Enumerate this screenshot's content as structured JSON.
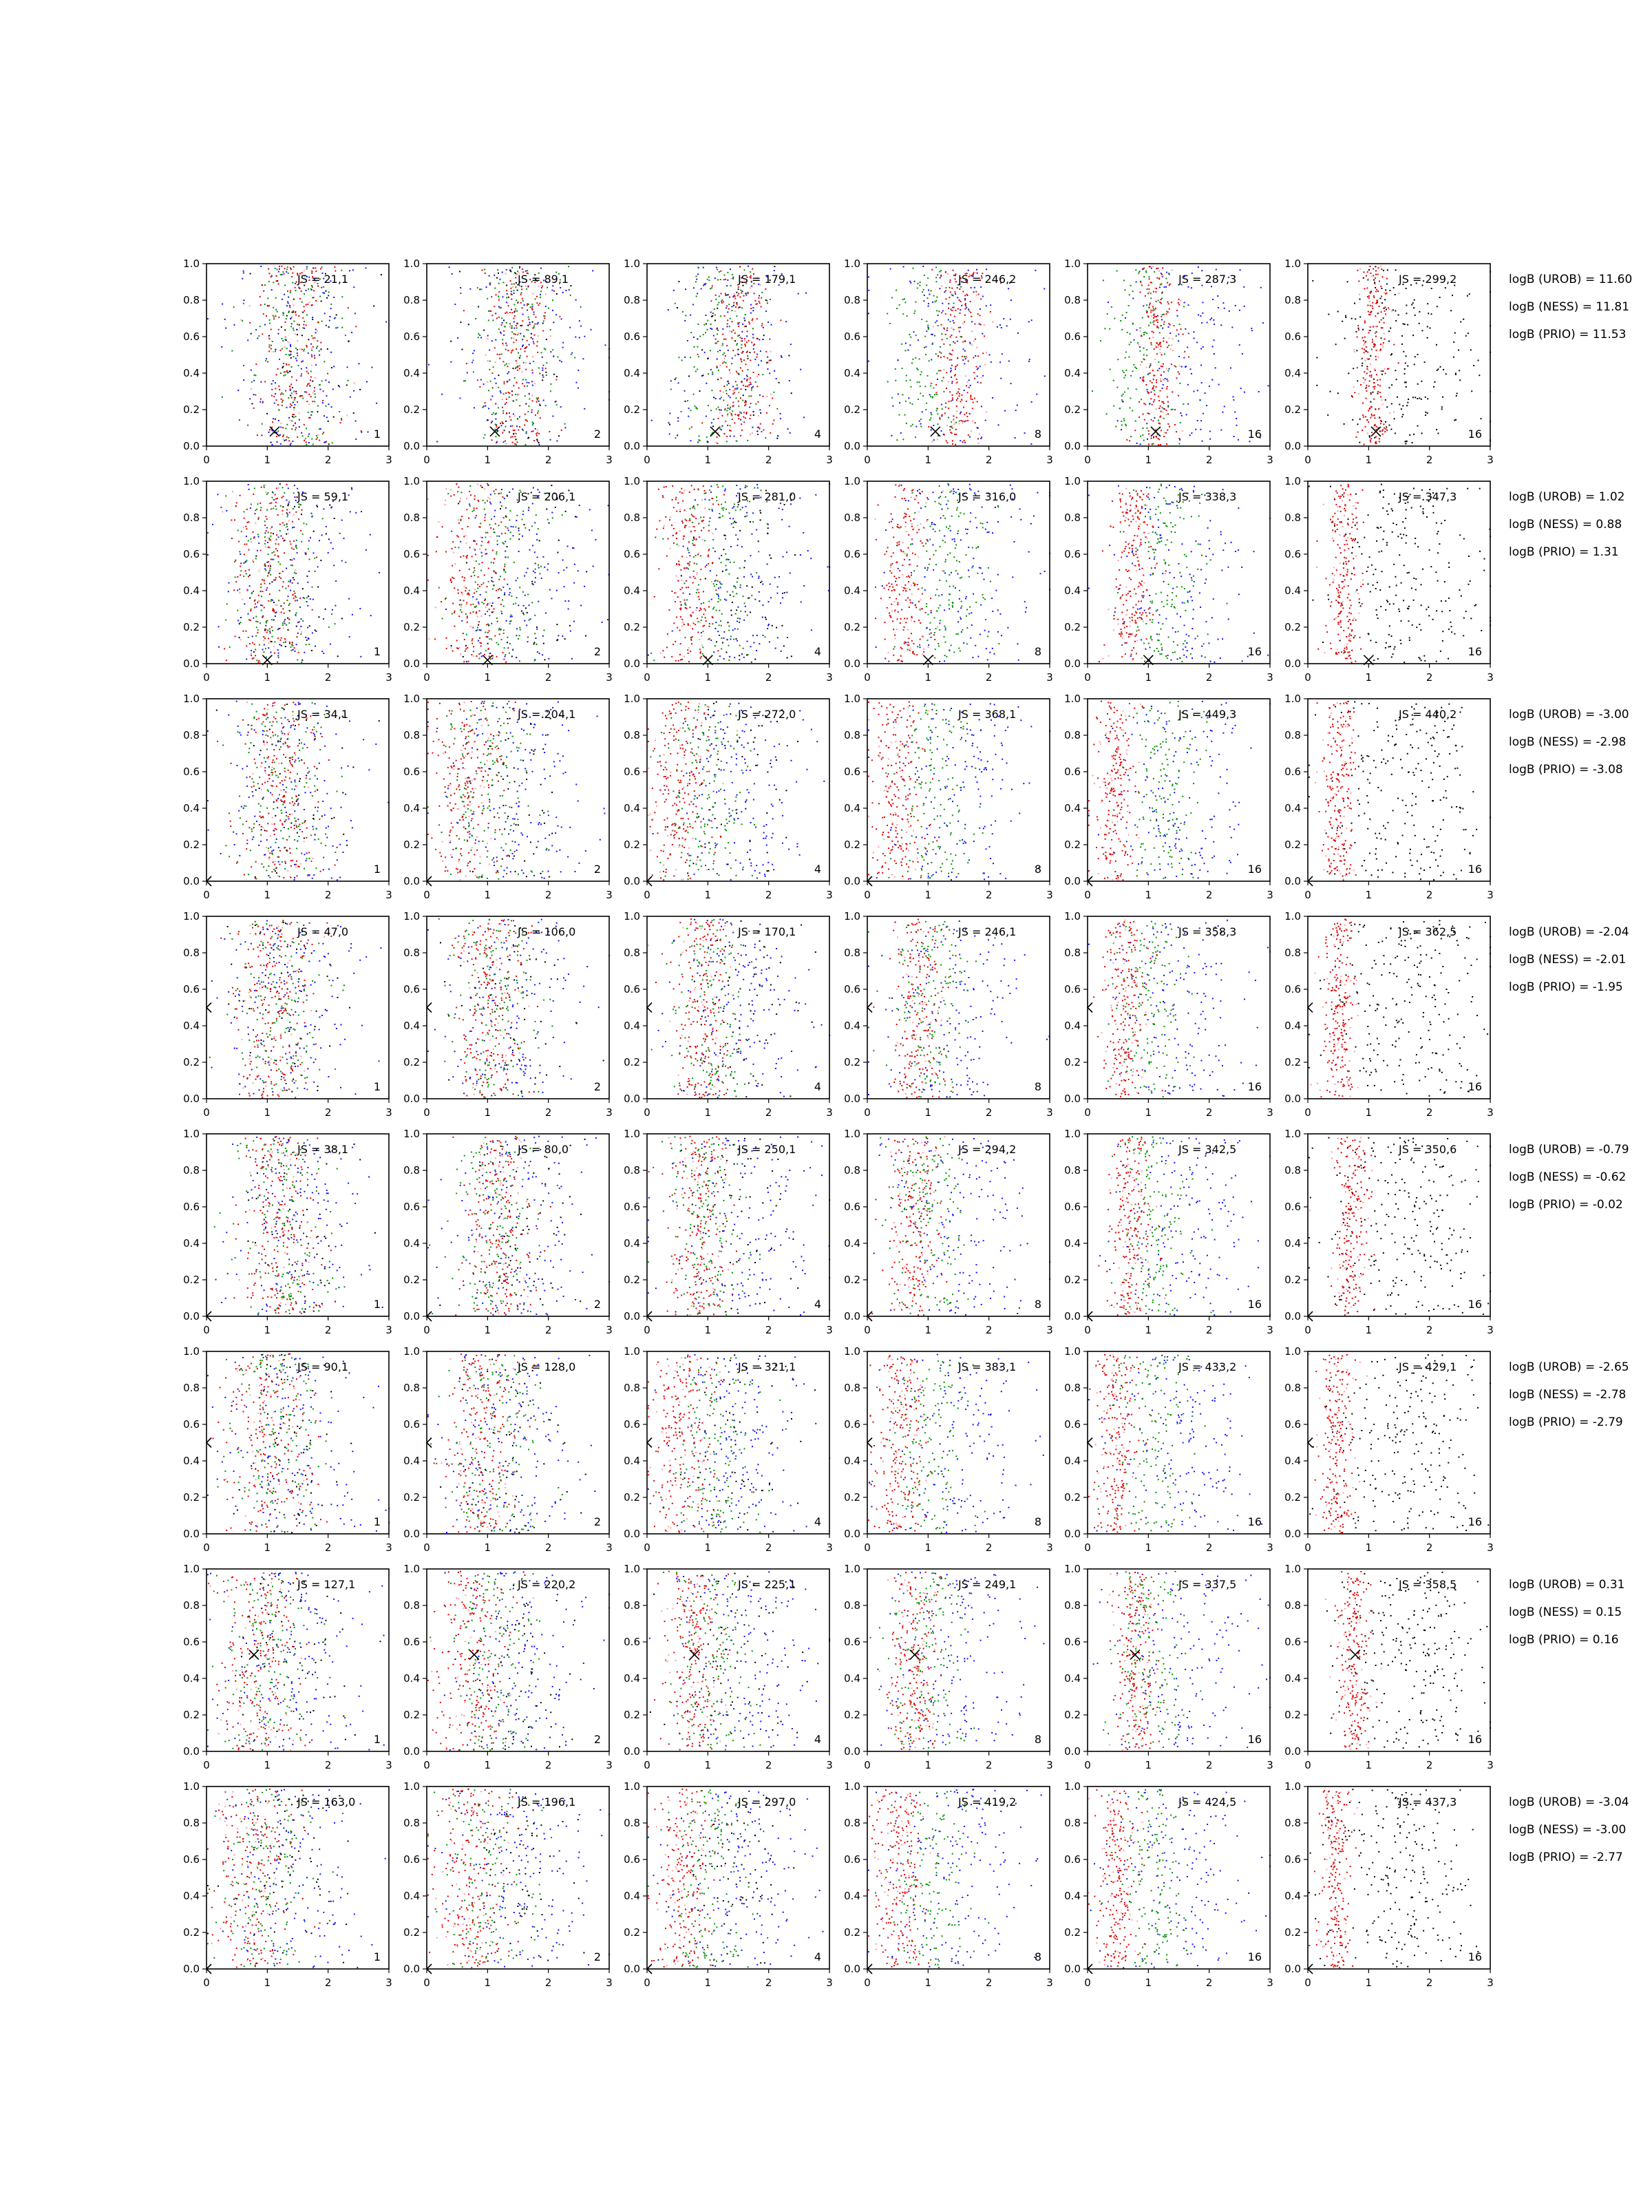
{
  "figure": {
    "grid": false,
    "rows": 8,
    "cols": 6,
    "colors": {
      "red": "#e00000",
      "green": "#009000",
      "blue": "#1010ff",
      "black": "#000000",
      "pink": "#ff9a9a"
    }
  },
  "chart_data": {
    "type": "scatter",
    "grid": false,
    "xlim": [
      0,
      3
    ],
    "ylim": [
      0,
      1
    ],
    "x_ticks": [
      "0",
      "1",
      "2",
      "3"
    ],
    "y_ticks": [
      "0.0",
      "0.2",
      "0.4",
      "0.6",
      "0.8",
      "1.0"
    ],
    "column_counts": [
      "1",
      "2",
      "4",
      "8",
      "16",
      "16"
    ],
    "column_palettes": [
      [
        "red",
        "green",
        "blue",
        "black"
      ],
      [
        "red",
        "green",
        "blue",
        "black"
      ],
      [
        "red",
        "green",
        "blue",
        "black"
      ],
      [
        "red",
        "green",
        "blue"
      ],
      [
        "red",
        "green",
        "blue"
      ],
      [
        "red",
        "black"
      ]
    ],
    "rows": [
      {
        "js": [
          "JS = 21,1",
          "JS = 89,1",
          "JS = 179,1",
          "JS = 246,2",
          "JS = 287,3",
          "JS = 299,2"
        ],
        "logB": [
          "logB (UROB) = 11.60",
          "logB (NESS) = 11.81",
          "logB (PRIO) = 11.53"
        ],
        "marker": {
          "type": "x",
          "x": 1.12,
          "y": 0.08
        },
        "red_center": [
          1.45,
          1.5,
          1.55,
          1.5,
          1.15,
          1.05
        ],
        "green_center": [
          1.45,
          1.45,
          1.2,
          1.0,
          0.85,
          1.0
        ],
        "blue_center": [
          1.5,
          1.5,
          1.45,
          1.5,
          1.7,
          1.6
        ]
      },
      {
        "js": [
          "JS = 59,1",
          "JS = 206,1",
          "JS = 281,0",
          "JS = 316,0",
          "JS = 338,3",
          "JS = 347,3"
        ],
        "logB": [
          "logB (UROB) = 1.02",
          "logB (NESS) = 0.88",
          "logB (PRIO) = 1.31"
        ],
        "marker": {
          "type": "x",
          "x": 1.0,
          "y": 0.02
        },
        "red_center": [
          1.0,
          0.75,
          0.65,
          0.6,
          0.75,
          0.6
        ],
        "green_center": [
          1.1,
          1.2,
          1.2,
          1.3,
          1.3,
          1.0
        ],
        "blue_center": [
          1.4,
          1.6,
          1.6,
          1.6,
          1.6,
          1.6
        ]
      },
      {
        "js": [
          "JS = 34,1",
          "JS = 204,1",
          "JS = 272,0",
          "JS = 368,1",
          "JS = 449,3",
          "JS = 440,2"
        ],
        "logB": [
          "logB (UROB) = -3.00",
          "logB (NESS) = -2.98",
          "logB (PRIO) = -3.08"
        ],
        "marker": {
          "type": "chevron",
          "x": 0.0,
          "y": 0.0
        },
        "red_center": [
          1.2,
          0.65,
          0.55,
          0.5,
          0.45,
          0.5
        ],
        "green_center": [
          1.25,
          1.0,
          1.0,
          1.1,
          1.2,
          1.0
        ],
        "blue_center": [
          1.4,
          1.5,
          1.5,
          1.5,
          1.5,
          1.6
        ]
      },
      {
        "js": [
          "JS = 47,0",
          "JS = 106,0",
          "JS = 170,1",
          "JS = 246,1",
          "JS = 358,3",
          "JS = 362,5"
        ],
        "logB": [
          "logB (UROB) = -2.04",
          "logB (NESS) = -2.01",
          "logB (PRIO) = -1.95"
        ],
        "marker": {
          "type": "chevron",
          "x": 0.0,
          "y": 0.5
        },
        "red_center": [
          1.05,
          1.05,
          0.9,
          0.85,
          0.6,
          0.5
        ],
        "green_center": [
          1.2,
          1.1,
          1.1,
          1.0,
          1.0,
          1.0
        ],
        "blue_center": [
          1.4,
          1.4,
          1.5,
          1.5,
          1.5,
          1.6
        ]
      },
      {
        "js": [
          "JS = 38,1",
          "JS = 80,0",
          "JS = 250,1",
          "JS = 294,2",
          "JS = 342,5",
          "JS = 350,6"
        ],
        "logB": [
          "logB (UROB) = -0.79",
          "logB (NESS) = -0.62",
          "logB (PRIO) = -0.02"
        ],
        "marker": {
          "type": "chevron",
          "x": 0.0,
          "y": 0.0
        },
        "red_center": [
          1.2,
          1.15,
          0.85,
          0.75,
          0.7,
          0.7
        ],
        "green_center": [
          1.25,
          1.15,
          1.0,
          1.0,
          1.1,
          1.0
        ],
        "blue_center": [
          1.4,
          1.5,
          1.6,
          1.6,
          1.6,
          1.6
        ]
      },
      {
        "js": [
          "JS = 90,1",
          "JS = 128,0",
          "JS = 321,1",
          "JS = 383,1",
          "JS = 433,2",
          "JS = 429,1"
        ],
        "logB": [
          "logB (UROB) = -2.65",
          "logB (NESS) = -2.78",
          "logB (PRIO) = -2.79"
        ],
        "marker": {
          "type": "chevron",
          "x": 0.0,
          "y": 0.5
        },
        "red_center": [
          1.0,
          0.9,
          0.55,
          0.5,
          0.45,
          0.45
        ],
        "green_center": [
          1.15,
          1.1,
          1.1,
          1.0,
          1.1,
          1.0
        ],
        "blue_center": [
          1.4,
          1.4,
          1.5,
          1.5,
          1.5,
          1.6
        ]
      },
      {
        "js": [
          "JS = 127,1",
          "JS = 220,2",
          "JS = 225,1",
          "JS = 249,1",
          "JS = 337,5",
          "JS = 358,5"
        ],
        "logB": [
          "logB (UROB) = 0.31",
          "logB (NESS) = 0.15",
          "logB (PRIO) = 0.16"
        ],
        "marker": {
          "type": "x",
          "x": 0.78,
          "y": 0.53
        },
        "red_center": [
          0.8,
          0.75,
          0.75,
          0.75,
          0.75,
          0.75
        ],
        "green_center": [
          1.0,
          1.1,
          1.1,
          1.0,
          1.0,
          1.0
        ],
        "blue_center": [
          1.4,
          1.5,
          1.5,
          1.5,
          1.5,
          1.6
        ]
      },
      {
        "js": [
          "JS = 163,0",
          "JS = 196,1",
          "JS = 297,0",
          "JS = 419,2",
          "JS = 424,5",
          "JS = 437,3"
        ],
        "logB": [
          "logB (UROB) = -3.04",
          "logB (NESS) = -3.00",
          "logB (PRIO) = -2.77"
        ],
        "marker": {
          "type": "chevron",
          "x": 0.0,
          "y": 0.0
        },
        "red_center": [
          0.75,
          0.7,
          0.6,
          0.5,
          0.45,
          0.45
        ],
        "green_center": [
          0.95,
          1.0,
          1.0,
          1.05,
          1.05,
          1.0
        ],
        "blue_center": [
          1.4,
          1.5,
          1.5,
          1.5,
          1.5,
          1.6
        ]
      }
    ]
  }
}
